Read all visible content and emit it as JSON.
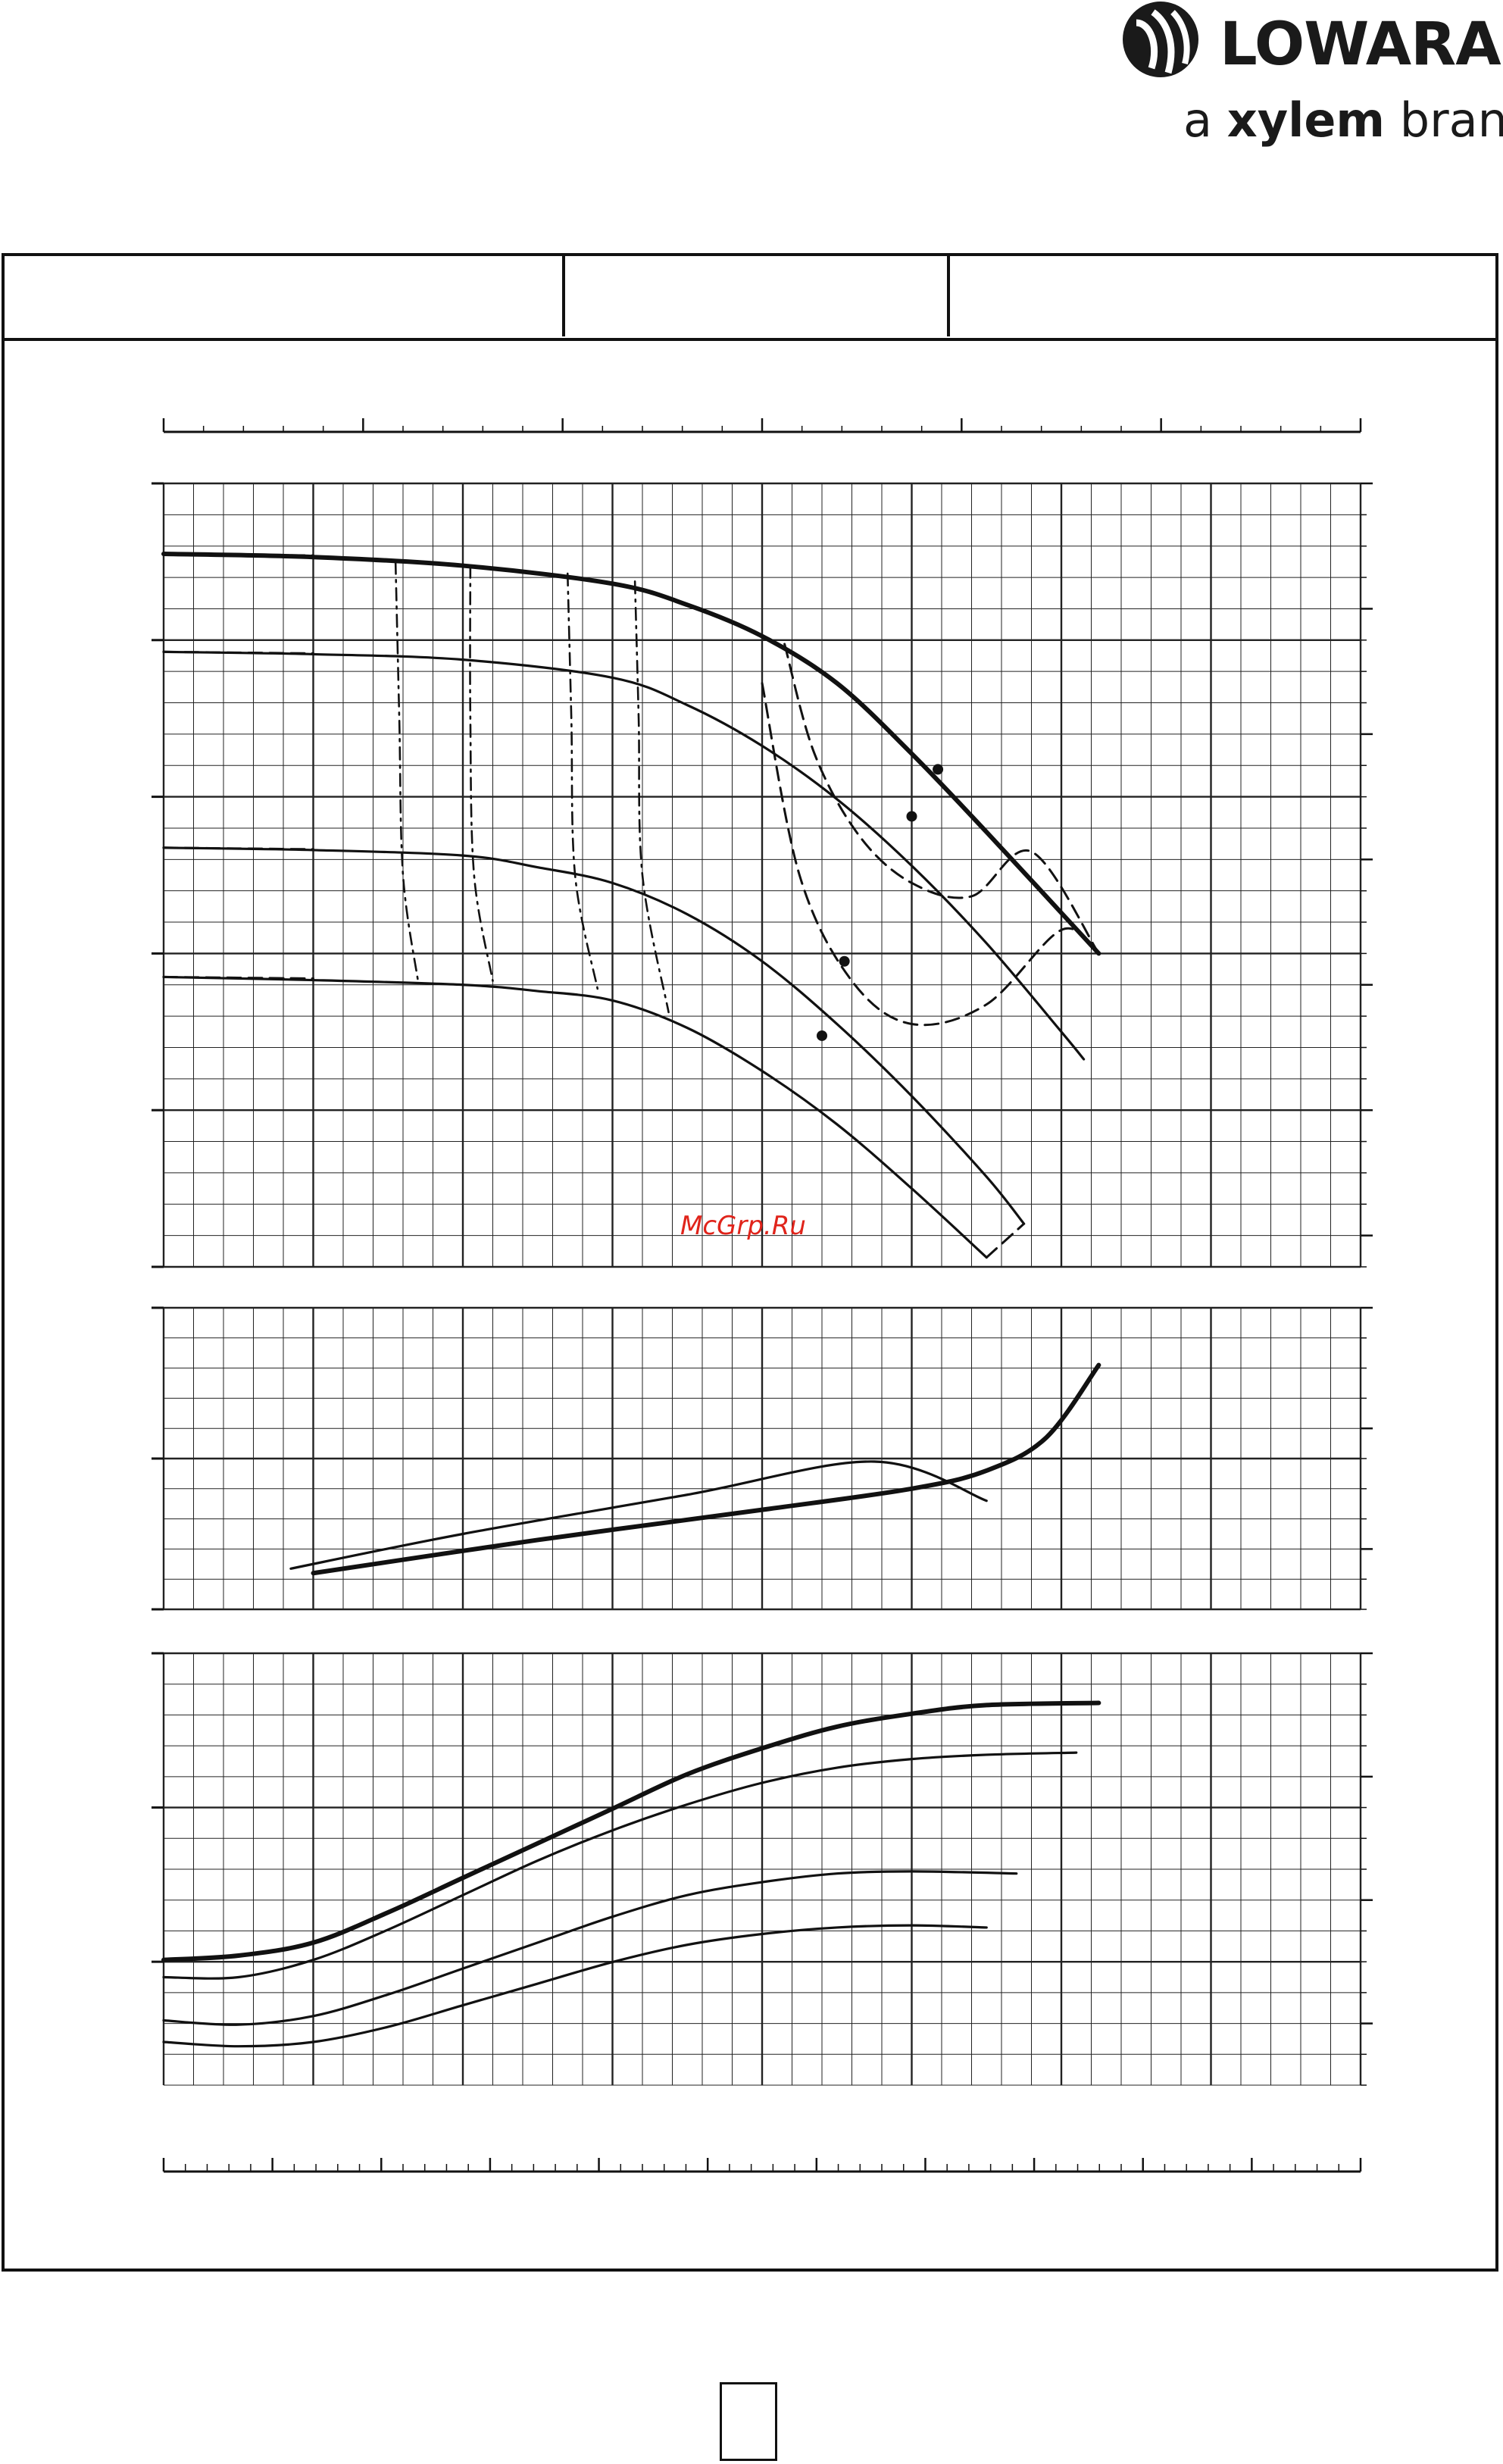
{
  "brand": {
    "name": "LOWARA",
    "tagline_prefix": "a ",
    "tagline_bold": "xylem",
    "tagline_suffix": " brand",
    "logo_icon": "lowara-drops-logo"
  },
  "watermark": "McGrp.Ru",
  "header_cells": [
    "",
    "",
    ""
  ],
  "page_number": "",
  "colors": {
    "line": "#111111",
    "grid": "#222222",
    "watermark": "#e0241b"
  },
  "chart_data": [
    {
      "type": "line",
      "panel": "head",
      "grid": true,
      "xlim": [
        0,
        16
      ],
      "ylim": [
        0,
        10
      ],
      "series": [
        {
          "style": "thick",
          "x": [
            0,
            2,
            4,
            6,
            7,
            8,
            9,
            10,
            11,
            12.5
          ],
          "y": [
            9.1,
            9.06,
            8.95,
            8.72,
            8.45,
            8.05,
            7.45,
            6.55,
            5.55,
            4.0
          ]
        },
        {
          "style": "thin",
          "x": [
            0,
            2,
            4,
            6,
            7,
            8,
            9,
            10,
            11,
            12,
            12.3
          ],
          "y": [
            7.85,
            7.82,
            7.75,
            7.52,
            7.17,
            6.65,
            5.97,
            5.12,
            4.13,
            3.0,
            2.65
          ]
        },
        {
          "style": "thin",
          "x": [
            0,
            2,
            4,
            5,
            6,
            7,
            8,
            9,
            10,
            11,
            11.5
          ],
          "y": [
            5.35,
            5.32,
            5.25,
            5.1,
            4.9,
            4.5,
            3.9,
            3.1,
            2.18,
            1.15,
            0.55
          ]
        },
        {
          "style": "thin",
          "x": [
            0,
            2,
            4,
            5,
            6,
            7,
            8,
            9,
            10,
            11
          ],
          "y": [
            3.7,
            3.66,
            3.6,
            3.52,
            3.4,
            3.05,
            2.5,
            1.82,
            1.0,
            0.12
          ]
        },
        {
          "style": "dashed",
          "x": [
            8.3,
            8.7,
            9.3,
            10.0,
            10.8,
            11.6,
            12.5
          ],
          "y": [
            7.95,
            6.55,
            5.5,
            4.9,
            4.73,
            5.3,
            4.0
          ]
        },
        {
          "style": "dashed",
          "x": [
            8.0,
            8.5,
            9.2,
            10.0,
            11.0,
            12.0,
            12.5
          ],
          "y": [
            7.45,
            5.0,
            3.65,
            3.1,
            3.35,
            4.3,
            4.0
          ]
        },
        {
          "style": "dashed",
          "x": [
            11.0,
            11.5
          ],
          "y": [
            0.12,
            0.55
          ]
        },
        {
          "style": "dashed",
          "x": [
            0,
            1,
            2
          ],
          "y": [
            9.1,
            9.09,
            9.08
          ]
        },
        {
          "style": "dashed",
          "x": [
            0,
            1,
            2
          ],
          "y": [
            7.85,
            7.84,
            7.83
          ]
        },
        {
          "style": "dashed",
          "x": [
            0,
            1,
            2
          ],
          "y": [
            5.35,
            5.34,
            5.33
          ]
        },
        {
          "style": "dashed",
          "x": [
            0,
            1,
            2
          ],
          "y": [
            3.7,
            3.69,
            3.68
          ]
        },
        {
          "style": "dashdot",
          "x": [
            3.1,
            3.15,
            3.2,
            3.4
          ],
          "y": [
            9.0,
            7.0,
            5.0,
            3.65
          ]
        },
        {
          "style": "dashdot",
          "x": [
            4.1,
            4.1,
            4.15,
            4.4
          ],
          "y": [
            8.95,
            7.0,
            5.0,
            3.65
          ]
        },
        {
          "style": "dashdot",
          "x": [
            5.4,
            5.45,
            5.5,
            5.8
          ],
          "y": [
            8.85,
            7.0,
            5.0,
            3.55
          ]
        },
        {
          "style": "dashdot",
          "x": [
            6.3,
            6.35,
            6.4,
            6.75
          ],
          "y": [
            8.75,
            7.0,
            5.0,
            3.25
          ]
        }
      ],
      "points": [
        [
          10.35,
          6.35
        ],
        [
          10.0,
          5.75
        ],
        [
          9.1,
          3.9
        ],
        [
          8.8,
          2.95
        ]
      ]
    },
    {
      "type": "line",
      "panel": "efficiency",
      "grid": true,
      "xlim": [
        0,
        16
      ],
      "ylim": [
        0,
        10
      ],
      "series": [
        {
          "style": "thick",
          "x": [
            2,
            5,
            8,
            10,
            11,
            11.8,
            12.5
          ],
          "y": [
            1.2,
            2.3,
            3.3,
            4.0,
            4.6,
            5.7,
            8.1
          ]
        },
        {
          "style": "thin",
          "x": [
            1.7,
            4,
            7,
            9.5,
            11
          ],
          "y": [
            1.35,
            2.5,
            3.8,
            4.9,
            3.6
          ]
        }
      ]
    },
    {
      "type": "line",
      "panel": "power",
      "grid": true,
      "xlim": [
        0,
        16
      ],
      "ylim": [
        0,
        10
      ],
      "series": [
        {
          "style": "thick",
          "x": [
            0,
            1,
            2,
            3,
            4,
            5,
            6,
            7,
            8,
            9,
            10,
            11,
            12.5
          ],
          "y": [
            2.9,
            3.0,
            3.3,
            4.0,
            4.8,
            5.6,
            6.4,
            7.2,
            7.8,
            8.3,
            8.6,
            8.8,
            8.85
          ]
        },
        {
          "style": "thin",
          "x": [
            0,
            1,
            2,
            3,
            4,
            5,
            6,
            7,
            8,
            9,
            10,
            11,
            12.2
          ],
          "y": [
            2.5,
            2.5,
            2.9,
            3.6,
            4.4,
            5.2,
            5.9,
            6.5,
            7.0,
            7.35,
            7.55,
            7.65,
            7.7
          ]
        },
        {
          "style": "thin",
          "x": [
            0,
            1,
            2,
            3,
            4,
            5,
            6,
            7,
            8,
            9,
            10,
            11.4
          ],
          "y": [
            1.5,
            1.4,
            1.6,
            2.1,
            2.7,
            3.3,
            3.9,
            4.4,
            4.7,
            4.9,
            4.95,
            4.9
          ]
        },
        {
          "style": "thin",
          "x": [
            0,
            1,
            2,
            3,
            4,
            5,
            6,
            7,
            8,
            9,
            10,
            11
          ],
          "y": [
            1.0,
            0.9,
            1.0,
            1.35,
            1.85,
            2.35,
            2.85,
            3.25,
            3.5,
            3.65,
            3.7,
            3.65
          ]
        }
      ]
    }
  ]
}
